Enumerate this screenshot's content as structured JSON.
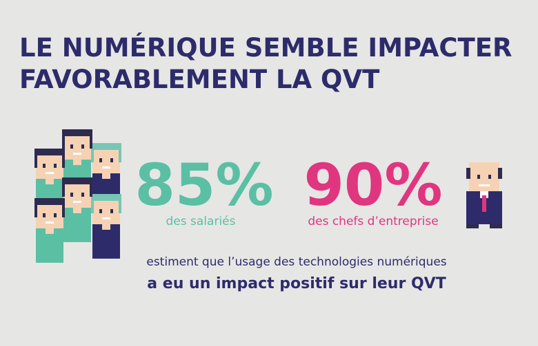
{
  "title": {
    "line1": "LE NUMÉRIQUE SEMBLE IMPACTER",
    "line2": "FAVORABLEMENT LA QVT"
  },
  "stats": [
    {
      "value": "85%",
      "label": "des salariés"
    },
    {
      "value": "90%",
      "label": "des chefs d’entreprise"
    }
  ],
  "conclusion": {
    "line1": "estiment que l’usage des technologies numériques",
    "line2": "a eu un impact positif sur leur QVT"
  }
}
